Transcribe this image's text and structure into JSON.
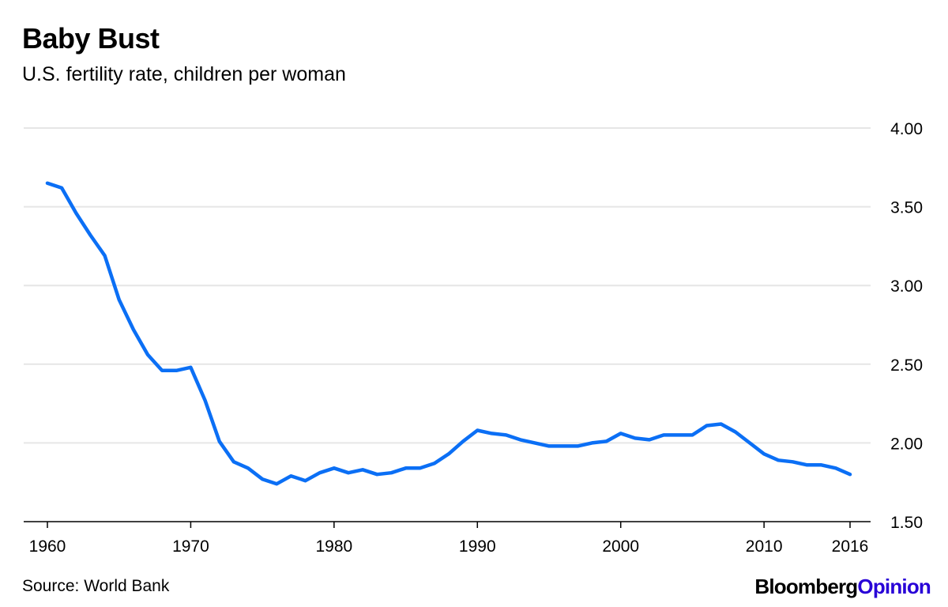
{
  "header": {
    "title": "Baby Bust",
    "subtitle": "U.S. fertility rate, children per woman"
  },
  "footer": {
    "source": "Source: World Bank",
    "brand_part1": "Bloomberg",
    "brand_part2": "Opinion"
  },
  "colors": {
    "line": "#0b6ff5",
    "grid": "#e6e6e6",
    "axis": "#000000",
    "brand_accent": "#2800d7"
  },
  "chart_data": {
    "type": "line",
    "title": "Baby Bust",
    "subtitle": "U.S. fertility rate, children per woman",
    "xlabel": "",
    "ylabel": "",
    "xlim": [
      1960,
      2016
    ],
    "ylim": [
      1.5,
      4.0
    ],
    "grid": true,
    "y_axis_side": "right",
    "x_ticks": [
      "1960",
      "1970",
      "1980",
      "1990",
      "2000",
      "2010",
      "2016"
    ],
    "y_ticks": [
      "1.50",
      "2.00",
      "2.50",
      "3.00",
      "3.50",
      "4.00"
    ],
    "series": [
      {
        "name": "",
        "x": [
          1960,
          1961,
          1962,
          1963,
          1964,
          1965,
          1966,
          1967,
          1968,
          1969,
          1970,
          1971,
          1972,
          1973,
          1974,
          1975,
          1976,
          1977,
          1978,
          1979,
          1980,
          1981,
          1982,
          1983,
          1984,
          1985,
          1986,
          1987,
          1988,
          1989,
          1990,
          1991,
          1992,
          1993,
          1994,
          1995,
          1996,
          1997,
          1998,
          1999,
          2000,
          2001,
          2002,
          2003,
          2004,
          2005,
          2006,
          2007,
          2008,
          2009,
          2010,
          2011,
          2012,
          2013,
          2014,
          2015,
          2016
        ],
        "values": [
          3.65,
          3.62,
          3.46,
          3.32,
          3.19,
          2.91,
          2.72,
          2.56,
          2.46,
          2.46,
          2.48,
          2.27,
          2.01,
          1.88,
          1.84,
          1.77,
          1.74,
          1.79,
          1.76,
          1.81,
          1.84,
          1.81,
          1.83,
          1.8,
          1.81,
          1.84,
          1.84,
          1.87,
          1.93,
          2.01,
          2.08,
          2.06,
          2.05,
          2.02,
          2.0,
          1.98,
          1.98,
          1.98,
          2.0,
          2.01,
          2.06,
          2.03,
          2.02,
          2.05,
          2.05,
          2.05,
          2.11,
          2.12,
          2.07,
          2.0,
          1.93,
          1.89,
          1.88,
          1.86,
          1.86,
          1.84,
          1.8
        ]
      }
    ]
  }
}
